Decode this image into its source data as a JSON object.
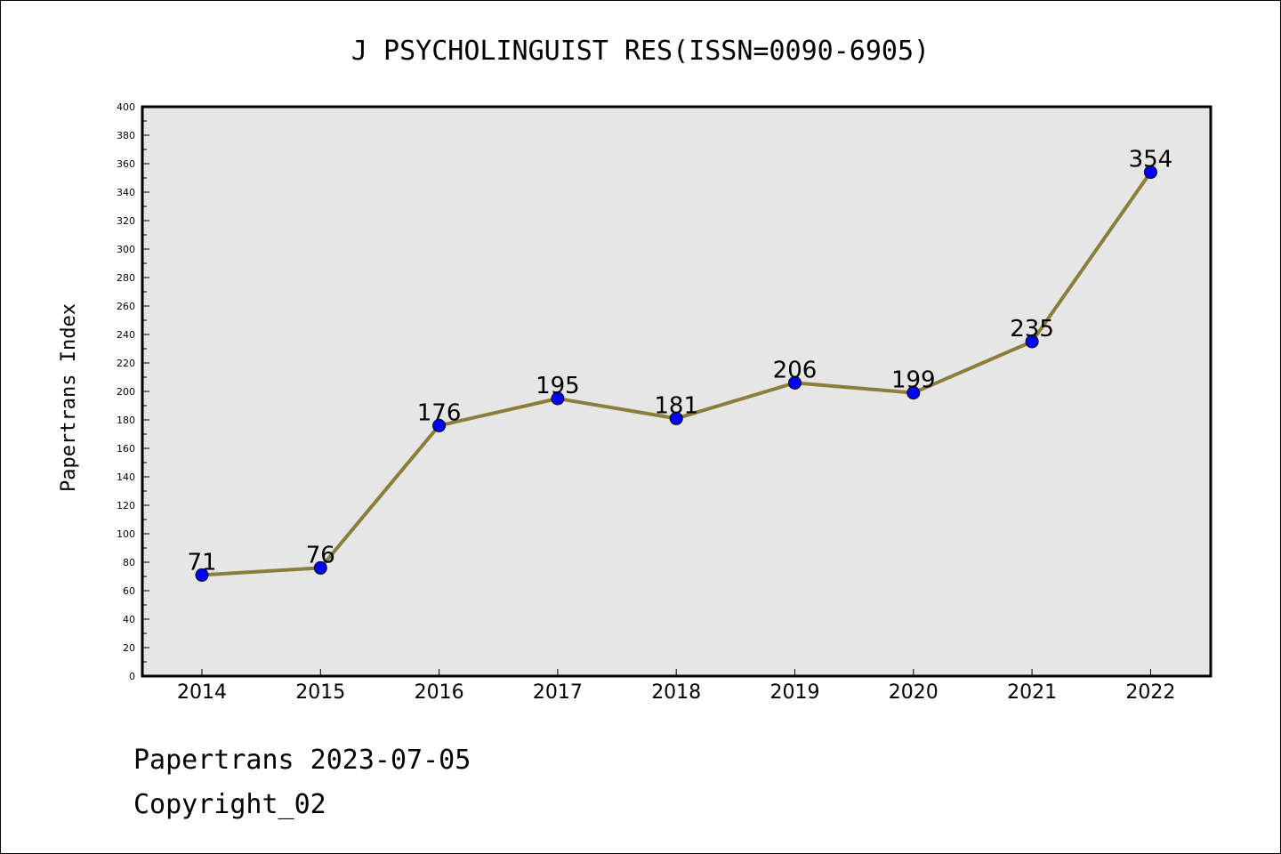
{
  "chart_data": {
    "type": "line",
    "title": "J PSYCHOLINGUIST RES(ISSN=0090-6905)",
    "xlabel": "",
    "ylabel": "Papertrans Index",
    "categories": [
      "2014",
      "2015",
      "2016",
      "2017",
      "2018",
      "2019",
      "2020",
      "2021",
      "2022"
    ],
    "values": [
      71,
      76,
      176,
      195,
      181,
      206,
      199,
      235,
      354
    ],
    "ylim": [
      0,
      400
    ],
    "ymajor_step": 20,
    "grid": false,
    "legend": "none",
    "colors": {
      "line": "#8b7d3a",
      "marker": "#0000ff",
      "plot_bg": "#e6e6e6"
    }
  },
  "footer": {
    "line1": "Papertrans 2023-07-05",
    "line2": "Copyright_02"
  }
}
